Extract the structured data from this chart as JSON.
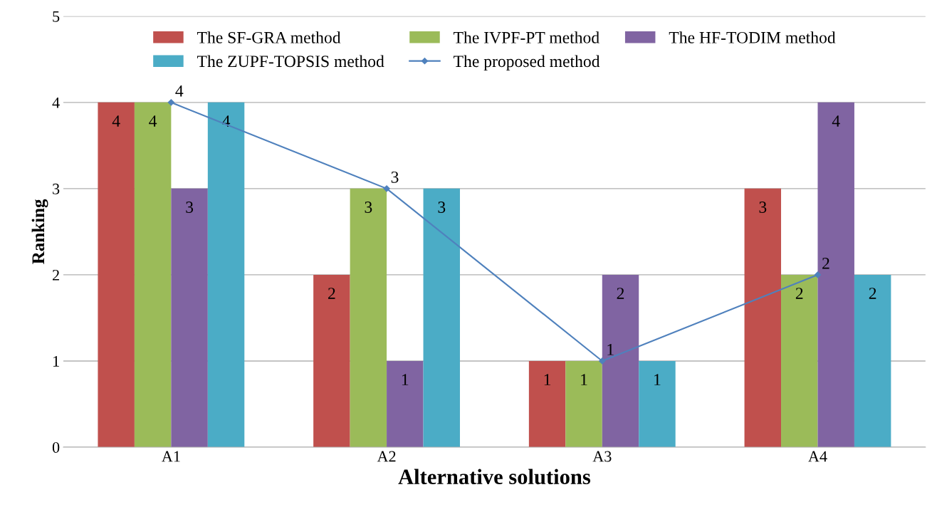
{
  "chart_data": {
    "type": "bar",
    "xlabel": "Alternative solutions",
    "ylabel": "Ranking",
    "categories": [
      "A1",
      "A2",
      "A3",
      "A4"
    ],
    "series": [
      {
        "name": "The SF-GRA method",
        "color": "#c0504d",
        "values": [
          4,
          2,
          1,
          3
        ]
      },
      {
        "name": "The IVPF-PT method",
        "color": "#9bbb59",
        "values": [
          4,
          3,
          1,
          2
        ]
      },
      {
        "name": "The HF-TODIM method",
        "color": "#8064a2",
        "values": [
          3,
          1,
          2,
          4
        ]
      },
      {
        "name": "The ZUPF-TOPSIS method",
        "color": "#4bacc6",
        "values": [
          4,
          3,
          1,
          2
        ]
      },
      {
        "name": "The proposed method",
        "color": "#4f81bd",
        "type": "line",
        "values": [
          4,
          3,
          1,
          2
        ]
      }
    ],
    "ylim": [
      0,
      5
    ],
    "yticks": [
      0,
      1,
      2,
      3,
      4,
      5
    ],
    "grid": "y",
    "legend": "top",
    "marker": "diamond",
    "line_style": "solid",
    "data_labels": true
  }
}
